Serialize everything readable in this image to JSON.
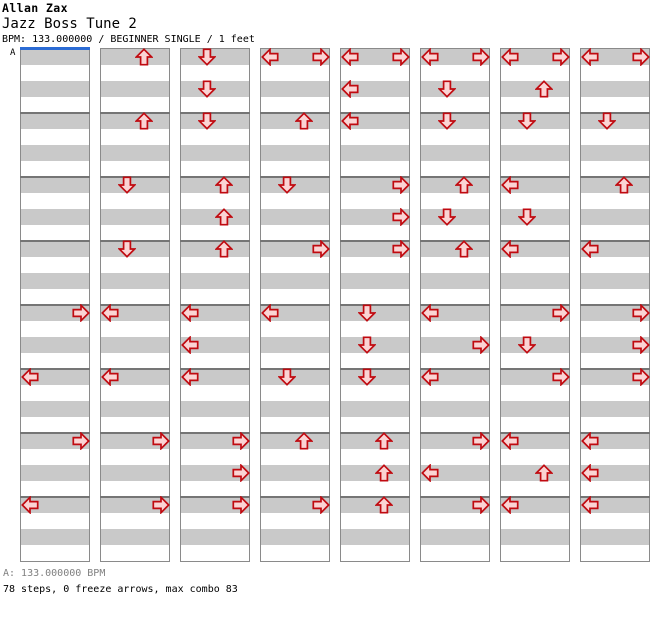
{
  "header": {
    "artist": "Allan Zax",
    "title": "Jazz Boss Tune 2",
    "meta": "BPM: 133.000000 / BEGINNER SINGLE / 1 feet",
    "section_marker": "A"
  },
  "footer": {
    "bpm_line": "A: 133.000000 BPM",
    "stats_line": "78 steps, 0 freeze arrows, max combo 83"
  },
  "colors": {
    "stripe_gray": "#c9c9c9",
    "row_white": "#ffffff",
    "column_border": "#8a8a8a",
    "measure_line": "#757575",
    "bpm_marker_blue": "#2b6bd4",
    "arrow_fill": "#fbd4d4",
    "arrow_stroke": "#c00a10",
    "footer_muted": "#808080",
    "text": "#000000"
  },
  "chart_data": {
    "type": "step_chart",
    "artist": "Allan Zax",
    "title": "Jazz Boss Tune 2",
    "bpm": "133.000000",
    "difficulty": "BEGINNER SINGLE",
    "feet": 1,
    "steps": 78,
    "freeze_arrows": 0,
    "max_combo": 83,
    "bpm_sections": [
      {
        "label": "A",
        "bpm": "133.000000"
      }
    ],
    "lanes": [
      "left",
      "down",
      "up",
      "right"
    ],
    "columns_count": 8,
    "measures_per_column": 8,
    "beats_per_measure": 4,
    "columns": [
      {
        "notes": [
          {
            "m": 5,
            "b": 0,
            "d": "R"
          },
          {
            "m": 6,
            "b": 0,
            "d": "L"
          },
          {
            "m": 7,
            "b": 0,
            "d": "R"
          },
          {
            "m": 8,
            "b": 0,
            "d": "L"
          }
        ]
      },
      {
        "notes": [
          {
            "m": 1,
            "b": 0,
            "d": "U"
          },
          {
            "m": 2,
            "b": 0,
            "d": "U"
          },
          {
            "m": 3,
            "b": 0,
            "d": "D"
          },
          {
            "m": 4,
            "b": 0,
            "d": "D"
          },
          {
            "m": 5,
            "b": 0,
            "d": "L"
          },
          {
            "m": 6,
            "b": 0,
            "d": "L"
          },
          {
            "m": 7,
            "b": 0,
            "d": "R"
          },
          {
            "m": 8,
            "b": 0,
            "d": "R"
          }
        ]
      },
      {
        "notes": [
          {
            "m": 1,
            "b": 0,
            "d": "D"
          },
          {
            "m": 1,
            "b": 2,
            "d": "D"
          },
          {
            "m": 2,
            "b": 0,
            "d": "D"
          },
          {
            "m": 3,
            "b": 0,
            "d": "U"
          },
          {
            "m": 3,
            "b": 2,
            "d": "U"
          },
          {
            "m": 4,
            "b": 0,
            "d": "U"
          },
          {
            "m": 5,
            "b": 0,
            "d": "L"
          },
          {
            "m": 5,
            "b": 2,
            "d": "L"
          },
          {
            "m": 6,
            "b": 0,
            "d": "L"
          },
          {
            "m": 7,
            "b": 0,
            "d": "R"
          },
          {
            "m": 7,
            "b": 2,
            "d": "R"
          },
          {
            "m": 8,
            "b": 0,
            "d": "R"
          }
        ]
      },
      {
        "notes": [
          {
            "m": 1,
            "b": 0,
            "d": "L"
          },
          {
            "m": 1,
            "b": 0,
            "d": "R"
          },
          {
            "m": 2,
            "b": 0,
            "d": "U"
          },
          {
            "m": 3,
            "b": 0,
            "d": "D"
          },
          {
            "m": 4,
            "b": 0,
            "d": "R"
          },
          {
            "m": 5,
            "b": 0,
            "d": "L"
          },
          {
            "m": 6,
            "b": 0,
            "d": "D"
          },
          {
            "m": 7,
            "b": 0,
            "d": "U"
          },
          {
            "m": 8,
            "b": 0,
            "d": "R"
          }
        ]
      },
      {
        "notes": [
          {
            "m": 1,
            "b": 0,
            "d": "L"
          },
          {
            "m": 1,
            "b": 0,
            "d": "R"
          },
          {
            "m": 1,
            "b": 2,
            "d": "L"
          },
          {
            "m": 2,
            "b": 0,
            "d": "L"
          },
          {
            "m": 3,
            "b": 0,
            "d": "R"
          },
          {
            "m": 3,
            "b": 2,
            "d": "R"
          },
          {
            "m": 4,
            "b": 0,
            "d": "R"
          },
          {
            "m": 5,
            "b": 0,
            "d": "D"
          },
          {
            "m": 5,
            "b": 2,
            "d": "D"
          },
          {
            "m": 6,
            "b": 0,
            "d": "D"
          },
          {
            "m": 7,
            "b": 0,
            "d": "U"
          },
          {
            "m": 7,
            "b": 2,
            "d": "U"
          },
          {
            "m": 8,
            "b": 0,
            "d": "U"
          }
        ]
      },
      {
        "notes": [
          {
            "m": 1,
            "b": 0,
            "d": "L"
          },
          {
            "m": 1,
            "b": 0,
            "d": "R"
          },
          {
            "m": 1,
            "b": 2,
            "d": "D"
          },
          {
            "m": 2,
            "b": 0,
            "d": "D"
          },
          {
            "m": 3,
            "b": 0,
            "d": "U"
          },
          {
            "m": 3,
            "b": 2,
            "d": "D"
          },
          {
            "m": 4,
            "b": 0,
            "d": "U"
          },
          {
            "m": 5,
            "b": 0,
            "d": "L"
          },
          {
            "m": 5,
            "b": 2,
            "d": "R"
          },
          {
            "m": 6,
            "b": 0,
            "d": "L"
          },
          {
            "m": 7,
            "b": 0,
            "d": "R"
          },
          {
            "m": 7,
            "b": 2,
            "d": "L"
          },
          {
            "m": 8,
            "b": 0,
            "d": "R"
          }
        ]
      },
      {
        "notes": [
          {
            "m": 1,
            "b": 0,
            "d": "L"
          },
          {
            "m": 1,
            "b": 0,
            "d": "R"
          },
          {
            "m": 1,
            "b": 2,
            "d": "U"
          },
          {
            "m": 2,
            "b": 0,
            "d": "D"
          },
          {
            "m": 3,
            "b": 0,
            "d": "L"
          },
          {
            "m": 3,
            "b": 2,
            "d": "D"
          },
          {
            "m": 4,
            "b": 0,
            "d": "L"
          },
          {
            "m": 5,
            "b": 0,
            "d": "R"
          },
          {
            "m": 5,
            "b": 2,
            "d": "D"
          },
          {
            "m": 6,
            "b": 0,
            "d": "R"
          },
          {
            "m": 7,
            "b": 0,
            "d": "L"
          },
          {
            "m": 7,
            "b": 2,
            "d": "U"
          },
          {
            "m": 8,
            "b": 0,
            "d": "L"
          }
        ]
      },
      {
        "notes": [
          {
            "m": 1,
            "b": 0,
            "d": "L"
          },
          {
            "m": 1,
            "b": 0,
            "d": "R"
          },
          {
            "m": 2,
            "b": 0,
            "d": "D"
          },
          {
            "m": 3,
            "b": 0,
            "d": "U"
          },
          {
            "m": 4,
            "b": 0,
            "d": "L"
          },
          {
            "m": 5,
            "b": 0,
            "d": "R"
          },
          {
            "m": 5,
            "b": 2,
            "d": "R"
          },
          {
            "m": 6,
            "b": 0,
            "d": "R"
          },
          {
            "m": 7,
            "b": 0,
            "d": "L"
          },
          {
            "m": 7,
            "b": 2,
            "d": "L"
          },
          {
            "m": 8,
            "b": 0,
            "d": "L"
          }
        ]
      }
    ]
  }
}
